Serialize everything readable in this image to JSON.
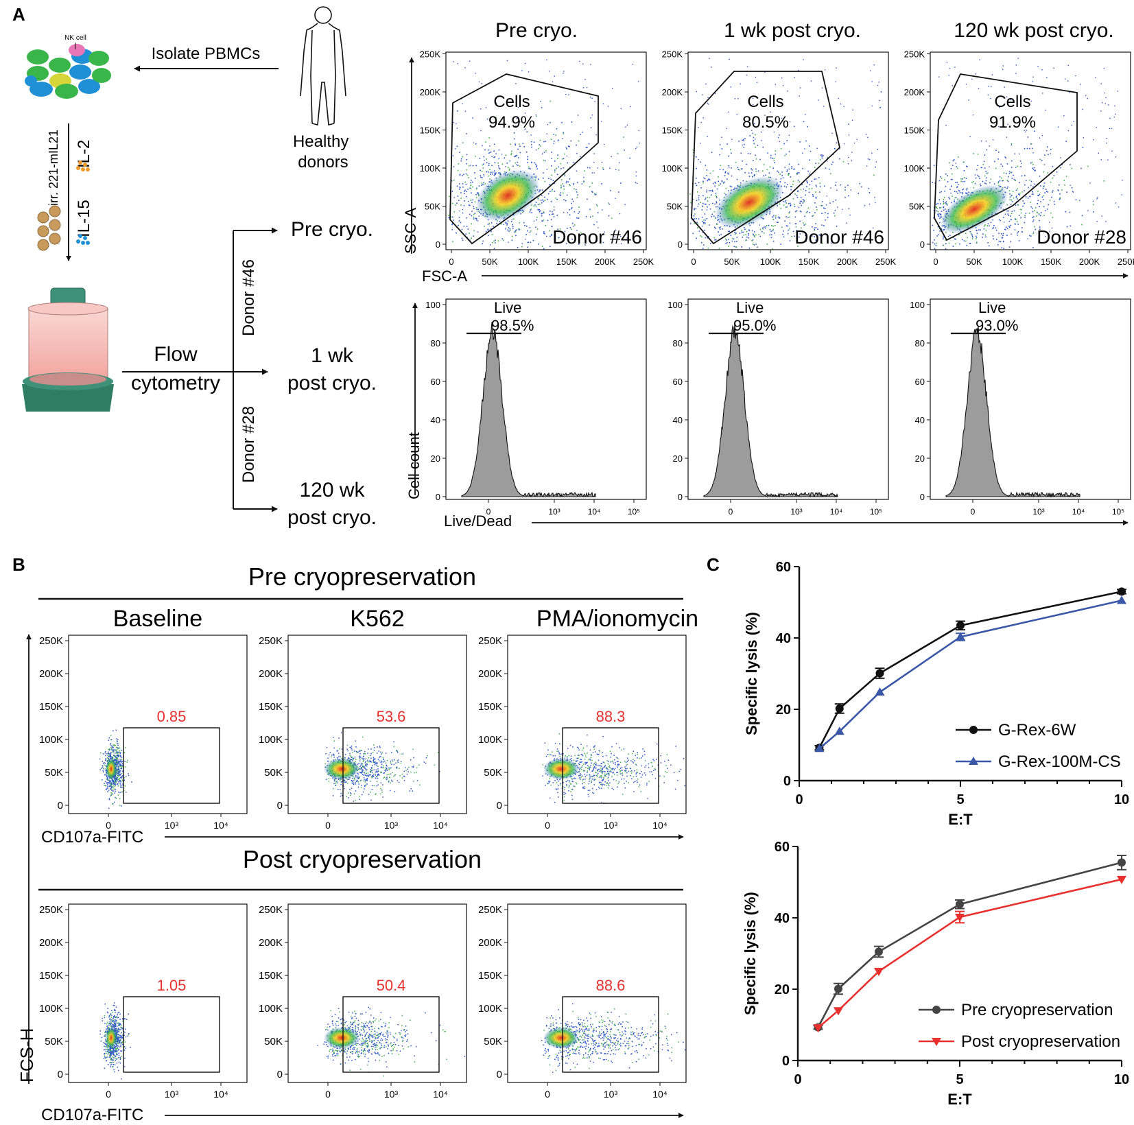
{
  "panel_a": {
    "label": "A",
    "nk_cell_label": "NK cell",
    "isolate_label": "Isolate PBMCs",
    "donor_label": "Healthy\ndonors",
    "irr_label": "irr. 221-mIL21",
    "il2_label": "IL-2",
    "il15_label": "IL-15",
    "flow_label": "Flow\ncytometry",
    "donor46_label": "Donor #46",
    "donor28_label": "Donor #28",
    "branches": [
      "Pre cryo.",
      "1 wk\npost cryo.",
      "120 wk\npost cryo."
    ],
    "column_titles": [
      "Pre cryo.",
      "1 wk post cryo.",
      "120 wk post cryo."
    ],
    "scatter_ylabel": "SSC-A",
    "scatter_xlabel": "FSC-A",
    "scatter_ticks": [
      "0",
      "50K",
      "100K",
      "150K",
      "200K",
      "250K"
    ],
    "gate_name": "Cells",
    "gates": [
      {
        "pct": "94.9%",
        "donor": "Donor #46"
      },
      {
        "pct": "80.5%",
        "donor": "Donor #46"
      },
      {
        "pct": "91.9%",
        "donor": "Donor #28"
      }
    ],
    "hist_ylabel": "Cell count",
    "hist_xlabel": "Live/Dead",
    "hist_yticks": [
      "0",
      "20",
      "40",
      "60",
      "80",
      "100"
    ],
    "hist_xticks": [
      "0",
      "10³",
      "10⁴",
      "10⁵"
    ],
    "live_name": "Live",
    "live_pcts": [
      "98.5%",
      "95.0%",
      "93.0%"
    ]
  },
  "panel_b": {
    "label": "B",
    "pre_title": "Pre cryopreservation",
    "post_title": "Post cryopreservation",
    "columns": [
      "Baseline",
      "K562",
      "PMA/ionomycin"
    ],
    "pre_values": [
      "0.85",
      "53.6",
      "88.3"
    ],
    "post_values": [
      "1.05",
      "50.4",
      "88.6"
    ],
    "yticks": [
      "0",
      "50K",
      "100K",
      "150K",
      "200K",
      "250K"
    ],
    "xticks": [
      "0",
      "10³",
      "10⁴"
    ],
    "xlabel": "CD107a-FITC",
    "ylabel": "FCS-H",
    "value_color": "#e8312f"
  },
  "panel_c": {
    "label": "C",
    "chart_data": [
      {
        "type": "line",
        "title": "",
        "xlabel": "E:T",
        "ylabel": "Specific lysis (%)",
        "x": [
          0.625,
          1.25,
          2.5,
          5,
          10
        ],
        "xlim": [
          0,
          10
        ],
        "ylim": [
          0,
          60
        ],
        "xticks": [
          "0",
          "5",
          "10"
        ],
        "yticks": [
          "0",
          "20",
          "40",
          "60"
        ],
        "legend": "bottom-right",
        "series": [
          {
            "name": "G-Rex-6W",
            "values": [
              9.2,
              20.2,
              30.1,
              43.5,
              53
            ],
            "errors": [
              0.6,
              1.3,
              1.4,
              1.2,
              0.6
            ],
            "color": "#111111",
            "marker": "circle"
          },
          {
            "name": "G-Rex-100M-CS",
            "values": [
              9.0,
              13.8,
              24.8,
              40.3,
              50.5
            ],
            "errors": [
              0.5,
              0.6,
              0.6,
              1.0,
              0.6
            ],
            "color": "#3a57a8",
            "marker": "triangle-up"
          }
        ]
      },
      {
        "type": "line",
        "title": "",
        "xlabel": "E:T",
        "ylabel": "Specific lysis (%)",
        "x": [
          0.625,
          1.25,
          2.5,
          5,
          10
        ],
        "xlim": [
          0,
          10
        ],
        "ylim": [
          0,
          60
        ],
        "xticks": [
          "0",
          "5",
          "10"
        ],
        "yticks": [
          "0",
          "20",
          "40",
          "60"
        ],
        "legend": "bottom-right",
        "series": [
          {
            "name": "Pre cryopreservation",
            "values": [
              9.3,
              20.1,
              30.5,
              43.8,
              55.5
            ],
            "errors": [
              0.5,
              1.5,
              1.5,
              1.2,
              2.0
            ],
            "color": "#444444",
            "marker": "circle"
          },
          {
            "name": "Post cryopreservation",
            "values": [
              9.2,
              14.0,
              25.0,
              40.2,
              50.8
            ],
            "errors": [
              0.4,
              0.5,
              0.6,
              1.6,
              0.8
            ],
            "color": "#e8312f",
            "marker": "triangle-down"
          }
        ]
      }
    ]
  }
}
